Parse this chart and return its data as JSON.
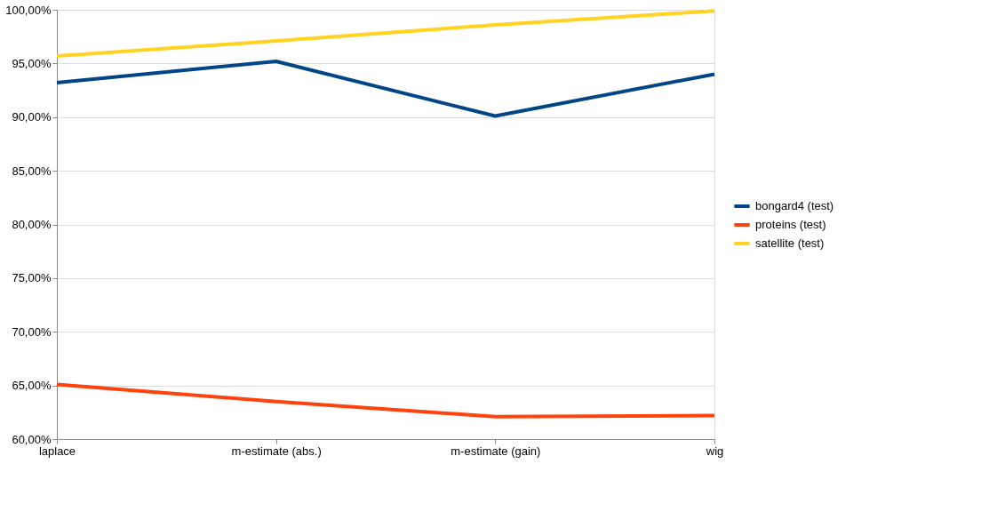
{
  "chart_data": {
    "type": "line",
    "categories": [
      "laplace",
      "m-estimate (abs.)",
      "m-estimate (gain)",
      "wig"
    ],
    "series": [
      {
        "name": "bongard4 (test)",
        "color": "#004586",
        "values": [
          93.2,
          95.2,
          90.1,
          94.0
        ]
      },
      {
        "name": "proteins (test)",
        "color": "#ff420e",
        "values": [
          65.1,
          63.5,
          62.1,
          62.2
        ]
      },
      {
        "name": "satellite (test)",
        "color": "#ffd320",
        "values": [
          95.7,
          97.1,
          98.6,
          99.9
        ]
      }
    ],
    "ylim": [
      60,
      100
    ],
    "yticks": [
      {
        "value": 60,
        "label": "60,00%"
      },
      {
        "value": 65,
        "label": "65,00%"
      },
      {
        "value": 70,
        "label": "70,00%"
      },
      {
        "value": 75,
        "label": "75,00%"
      },
      {
        "value": 80,
        "label": "80,00%"
      },
      {
        "value": 85,
        "label": "85,00%"
      },
      {
        "value": 90,
        "label": "90,00%"
      },
      {
        "value": 95,
        "label": "95,00%"
      },
      {
        "value": 100,
        "label": "100,00%"
      }
    ],
    "grid": "y",
    "legend": "right",
    "marker": "none",
    "line_style": "solid"
  }
}
